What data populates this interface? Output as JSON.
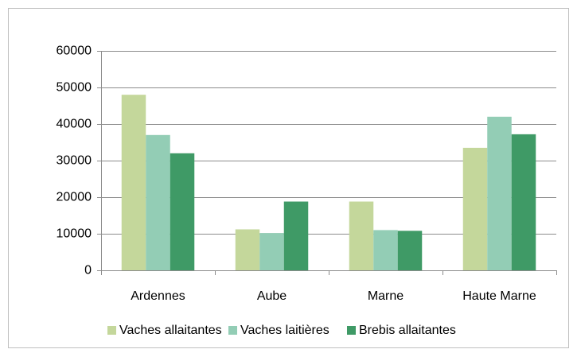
{
  "chart_data": {
    "type": "bar",
    "categories": [
      "Ardennes",
      "Aube",
      "Marne",
      "Haute Marne"
    ],
    "series": [
      {
        "name": "Vaches allaitantes",
        "color": "#c4d79b",
        "values": [
          48000,
          11200,
          18800,
          33500
        ]
      },
      {
        "name": "Vaches laitières",
        "color": "#93cdb5",
        "values": [
          37000,
          10200,
          11000,
          42000
        ]
      },
      {
        "name": "Brebis allaitantes",
        "color": "#3f9a66",
        "values": [
          32000,
          18800,
          10800,
          37200
        ]
      }
    ],
    "ylim": [
      0,
      60000
    ],
    "yticks": [
      0,
      10000,
      20000,
      30000,
      40000,
      50000,
      60000
    ],
    "grid": true,
    "legend": "bottom"
  }
}
